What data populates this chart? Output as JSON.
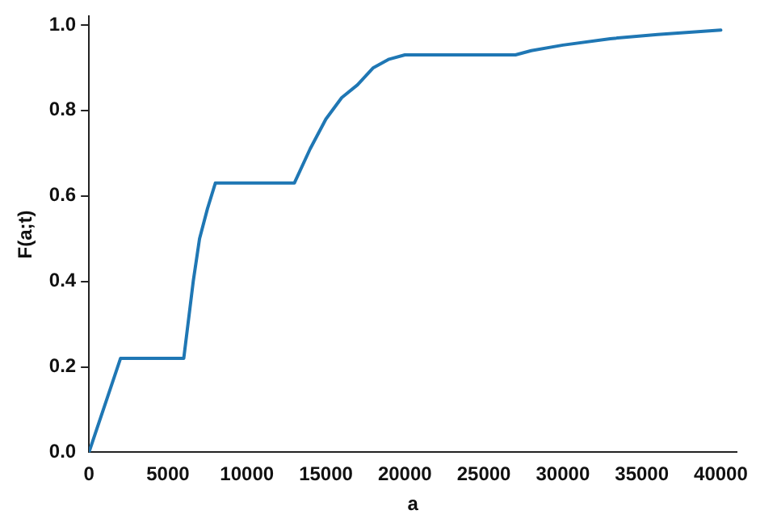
{
  "chart_data": {
    "type": "line",
    "xlabel": "a",
    "ylabel": "F(a;t)",
    "x": [
      0,
      2000,
      6000,
      6600,
      7000,
      7500,
      8000,
      13000,
      14000,
      15000,
      16000,
      17000,
      18000,
      19000,
      20000,
      27000,
      28000,
      30000,
      33000,
      36000,
      40000
    ],
    "series": [
      {
        "color": "#1f77b4",
        "values": [
          0,
          0.22,
          0.22,
          0.4,
          0.5,
          0.57,
          0.63,
          0.63,
          0.71,
          0.78,
          0.83,
          0.86,
          0.9,
          0.92,
          0.93,
          0.93,
          0.94,
          0.953,
          0.968,
          0.978,
          0.988
        ]
      }
    ],
    "xlim": [
      0,
      41000
    ],
    "ylim": [
      0,
      1.02
    ],
    "xticks": [
      0,
      5000,
      10000,
      15000,
      20000,
      25000,
      30000,
      35000,
      40000
    ],
    "yticks": [
      {
        "value": 0,
        "label": "0.0"
      },
      {
        "value": 0.2,
        "label": "0.2"
      },
      {
        "value": 0.4,
        "label": "0.4"
      },
      {
        "value": 0.6,
        "label": "0.6"
      },
      {
        "value": 0.8,
        "label": "0.8"
      },
      {
        "value": 1,
        "label": "1.0"
      }
    ],
    "grid": false,
    "legend": false,
    "marker": "none",
    "line_style": "solid"
  }
}
